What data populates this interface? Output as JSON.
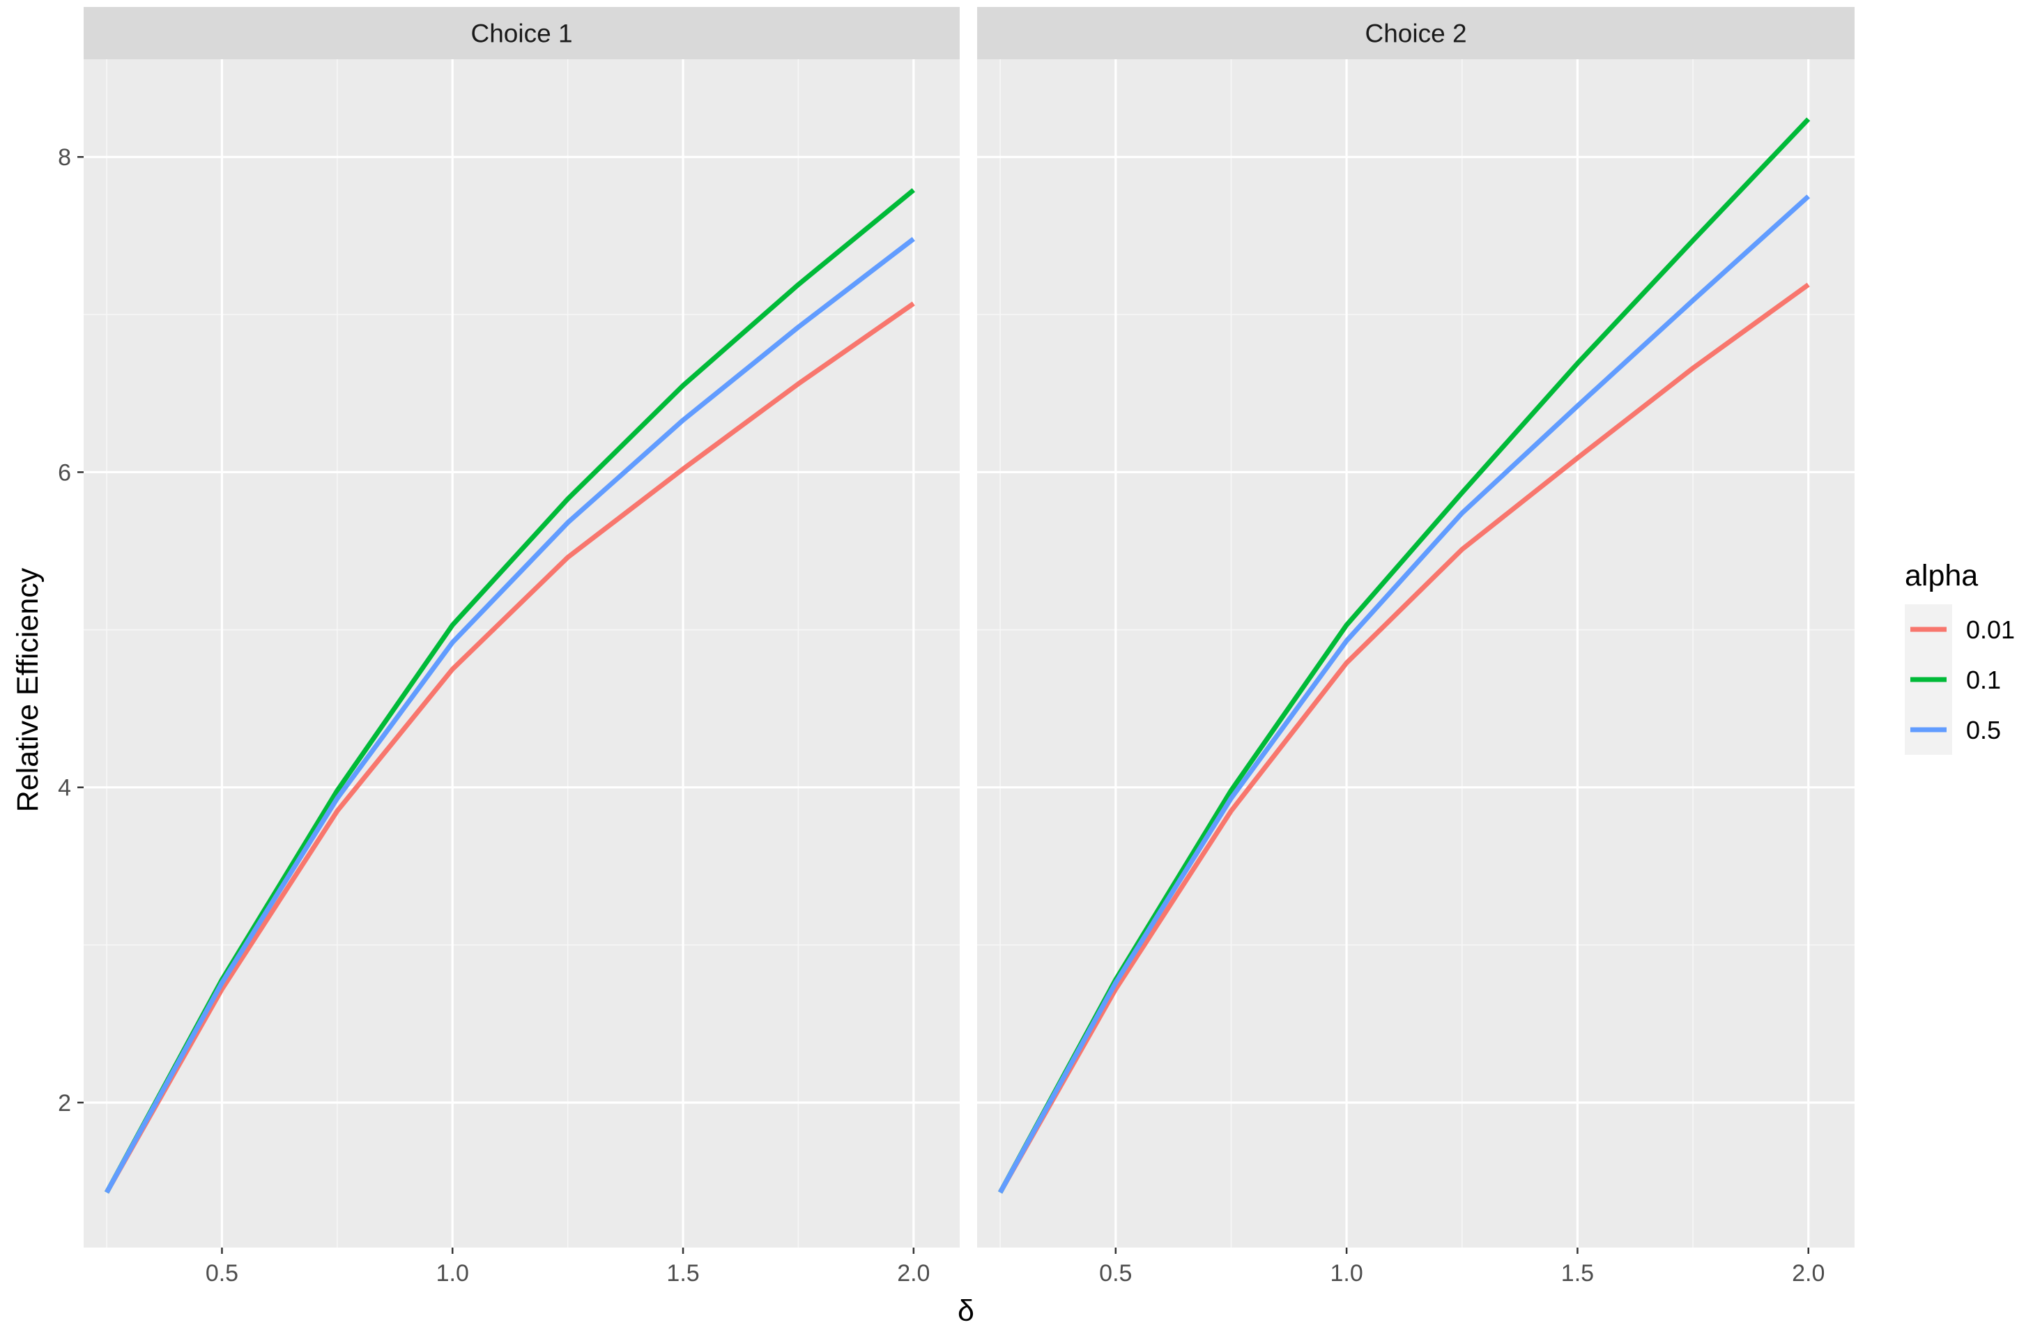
{
  "chart_data": {
    "type": "line",
    "xlabel": "δ",
    "ylabel": "Relative Efficiency",
    "xlim": [
      0.2,
      2.1
    ],
    "ylim": [
      1.08,
      8.62
    ],
    "x_ticks": [
      {
        "value": 0.5,
        "label": "0.5"
      },
      {
        "value": 1.0,
        "label": "1.0"
      },
      {
        "value": 1.5,
        "label": "1.5"
      },
      {
        "value": 2.0,
        "label": "2.0"
      }
    ],
    "y_ticks": [
      {
        "value": 2,
        "label": "2"
      },
      {
        "value": 4,
        "label": "4"
      },
      {
        "value": 6,
        "label": "6"
      },
      {
        "value": 8,
        "label": "8"
      }
    ],
    "grid": true,
    "legend": {
      "title": "alpha",
      "placement": "right",
      "entries": [
        {
          "label": "0.01",
          "color": "#F8766D"
        },
        {
          "label": "0.1",
          "color": "#00BA38"
        },
        {
          "label": "0.5",
          "color": "#619CFF"
        }
      ]
    },
    "panels": [
      {
        "title": "Choice 1",
        "x": [
          0.25,
          0.5,
          0.75,
          1.0,
          1.25,
          1.5,
          1.75,
          2.0
        ],
        "series": [
          {
            "name": "0.01",
            "color": "#F8766D",
            "values": [
              1.43,
              2.72,
              3.85,
              4.75,
              5.46,
              6.02,
              6.56,
              7.07
            ]
          },
          {
            "name": "0.1",
            "color": "#00BA38",
            "values": [
              1.43,
              2.78,
              3.98,
              5.03,
              5.83,
              6.55,
              7.19,
              7.79
            ]
          },
          {
            "name": "0.5",
            "color": "#619CFF",
            "values": [
              1.43,
              2.76,
              3.93,
              4.92,
              5.68,
              6.33,
              6.92,
              7.48
            ]
          }
        ]
      },
      {
        "title": "Choice 2",
        "x": [
          0.25,
          0.5,
          0.75,
          1.0,
          1.25,
          1.5,
          1.75,
          2.0
        ],
        "series": [
          {
            "name": "0.01",
            "color": "#F8766D",
            "values": [
              1.43,
              2.72,
              3.85,
              4.79,
              5.51,
              6.09,
              6.66,
              7.19
            ]
          },
          {
            "name": "0.1",
            "color": "#00BA38",
            "values": [
              1.43,
              2.78,
              3.98,
              5.03,
              5.87,
              6.69,
              7.47,
              8.24
            ]
          },
          {
            "name": "0.5",
            "color": "#619CFF",
            "values": [
              1.43,
              2.76,
              3.93,
              4.93,
              5.74,
              6.42,
              7.09,
              7.75
            ]
          }
        ]
      }
    ]
  }
}
